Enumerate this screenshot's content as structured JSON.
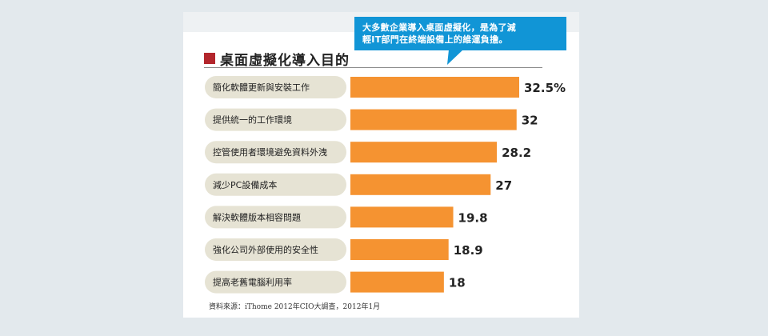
{
  "callout": {
    "line1": "大多數企業導入桌面虛擬化，是為了減",
    "line2": "輕IT部門在終端設備上的維運負擔。"
  },
  "colors": {
    "bar": "#f59331",
    "label_bg": "#e6e3d4",
    "title_square": "#b3262c",
    "callout": "#1195d6"
  },
  "chart_data": {
    "type": "bar",
    "orientation": "horizontal",
    "title": "桌面虛擬化導入目的",
    "categories": [
      "簡化軟體更新與安裝工作",
      "提供統一的工作環境",
      "控管使用者環境避免資料外洩",
      "減少PC設備成本",
      "解決軟體版本相容問題",
      "強化公司外部使用的安全性",
      "提高老舊電腦利用率"
    ],
    "values": [
      32.5,
      32,
      28.2,
      27,
      19.8,
      18.9,
      18
    ],
    "value_labels": [
      "32.5%",
      "32",
      "28.2",
      "27",
      "19.8",
      "18.9",
      "18"
    ],
    "xlim": [
      0,
      32.5
    ],
    "grid": false,
    "legend": "none",
    "source": "資料來源：iThome 2012年CIO大調查，2012年1月"
  }
}
